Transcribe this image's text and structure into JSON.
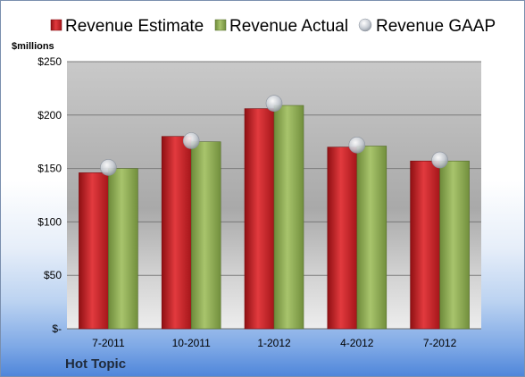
{
  "chart_data": {
    "type": "bar",
    "company": "Hot Topic",
    "ylabel": "$millions",
    "categories": [
      "7-2011",
      "10-2011",
      "1-2012",
      "4-2012",
      "7-2012"
    ],
    "series": [
      {
        "name": "Revenue Estimate",
        "type": "bar",
        "color": "#cc1f24",
        "values": [
          146,
          180,
          206,
          170,
          157
        ]
      },
      {
        "name": "Revenue Actual",
        "type": "bar",
        "color": "#8fae53",
        "values": [
          150,
          175,
          209,
          171,
          157
        ]
      },
      {
        "name": "Revenue GAAP",
        "type": "marker",
        "color": "#c8cdd5",
        "values": [
          151,
          176,
          211,
          172,
          158
        ]
      }
    ],
    "ylim": [
      0,
      250
    ],
    "yticks": [
      0,
      50,
      100,
      150,
      200,
      250
    ],
    "ytick_labels": [
      "$-",
      "$50",
      "$100",
      "$150",
      "$200",
      "$250"
    ],
    "grid": true,
    "legend_position": "top"
  }
}
